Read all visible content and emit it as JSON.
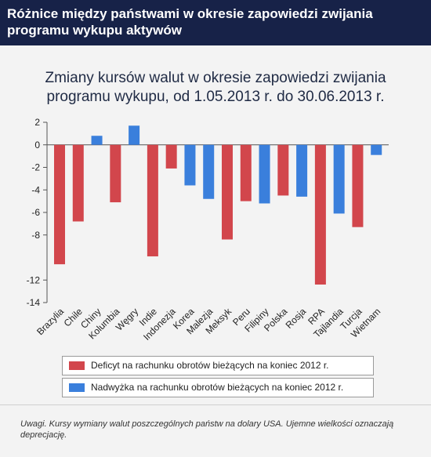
{
  "header": {
    "title": "Różnice między państwami w okresie zapowiedzi zwijania programu wykupu aktywów"
  },
  "chart_data": {
    "type": "bar",
    "title": "Zmiany kursów walut w okresie zapowiedzi zwijania programu wykupu, od 1.05.2013 r. do 30.06.2013 r.",
    "xlabel": "",
    "ylabel": "",
    "ylim": [
      -14,
      2
    ],
    "yticks": [
      2,
      0,
      -2,
      -4,
      -6,
      -8,
      -12,
      -14
    ],
    "categories": [
      "Brazylia",
      "Chile",
      "Chiny",
      "Kolumbia",
      "Węgry",
      "Indie",
      "Indonezja",
      "Korea",
      "Malezja",
      "Meksyk",
      "Peru",
      "Filipiny",
      "Polska",
      "Rosja",
      "RPA",
      "Tajlandia",
      "Turcja",
      "Wietnam"
    ],
    "values": [
      -10.6,
      -6.8,
      0.8,
      -5.1,
      1.7,
      -9.9,
      -2.1,
      -3.6,
      -4.8,
      -8.4,
      -5.0,
      -5.2,
      -4.5,
      -4.6,
      -12.4,
      -6.1,
      -7.3,
      -0.9
    ],
    "groups": [
      "deficit",
      "deficit",
      "surplus",
      "deficit",
      "surplus",
      "deficit",
      "deficit",
      "surplus",
      "surplus",
      "deficit",
      "deficit",
      "surplus",
      "deficit",
      "surplus",
      "deficit",
      "surplus",
      "deficit",
      "surplus"
    ],
    "legend": [
      {
        "key": "deficit",
        "label": "Deficyt na rachunku obrotów bieżących na koniec 2012 r.",
        "color": "#d2464c"
      },
      {
        "key": "surplus",
        "label": "Nadwyżka na rachunku obrotów bieżących na koniec 2012 r.",
        "color": "#3a7fdc"
      }
    ],
    "grid": false,
    "legend_placement": "bottom"
  },
  "note": "Uwagi. Kursy wymiany walut poszczególnych państw na dolary USA. Ujemne wielkości oznaczają deprecjację.",
  "colors": {
    "header_bg": "#172248",
    "deficit": "#d2464c",
    "surplus": "#3a7fdc"
  }
}
